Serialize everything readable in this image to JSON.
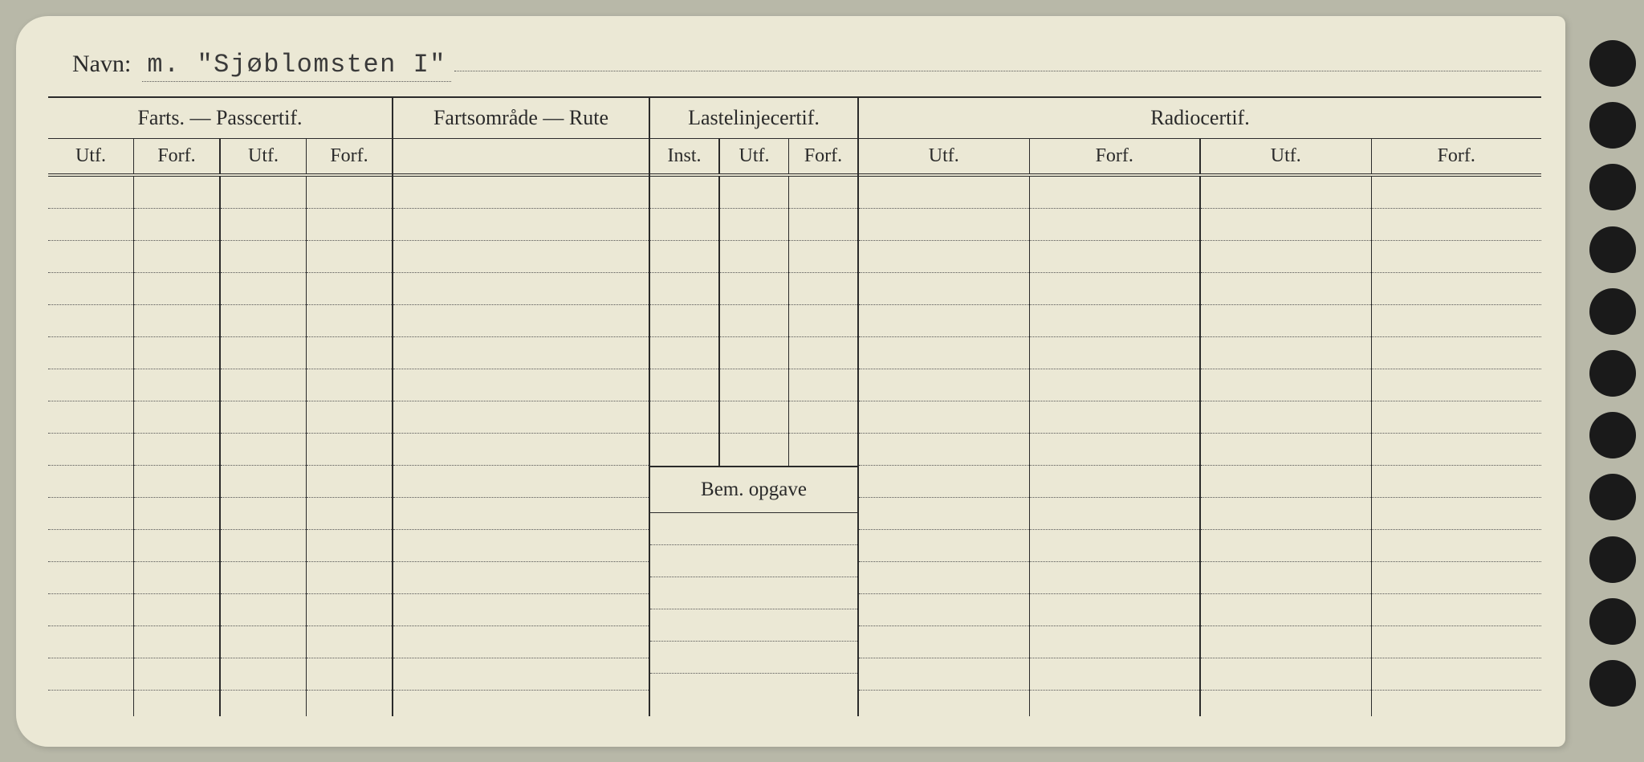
{
  "header": {
    "name_label": "Navn:",
    "name_value": "m. \"Sjøblomsten I\""
  },
  "sections": {
    "farts": {
      "title": "Farts. — Passcertif.",
      "subheaders": [
        "Utf.",
        "Forf.",
        "Utf.",
        "Forf."
      ]
    },
    "rute": {
      "title": "Fartsområde — Rute"
    },
    "laste": {
      "title": "Lastelinjecertif.",
      "subheaders": [
        "Inst.",
        "Utf.",
        "Forf."
      ],
      "bem_title": "Bem. opgave"
    },
    "radio": {
      "title": "Radiocertif.",
      "subheaders": [
        "Utf.",
        "Forf.",
        "Utf.",
        "Forf."
      ]
    }
  },
  "layout": {
    "body_row_count": 16,
    "laste_upper_rows": 9,
    "laste_lower_rows": 5,
    "rute_rows": 16,
    "colors": {
      "paper": "#ebe8d5",
      "ink": "#2a2a2a",
      "dotted": "#555555",
      "background": "#b8b8a8",
      "hole": "#1a1a1a"
    },
    "punch_hole_count": 11
  }
}
